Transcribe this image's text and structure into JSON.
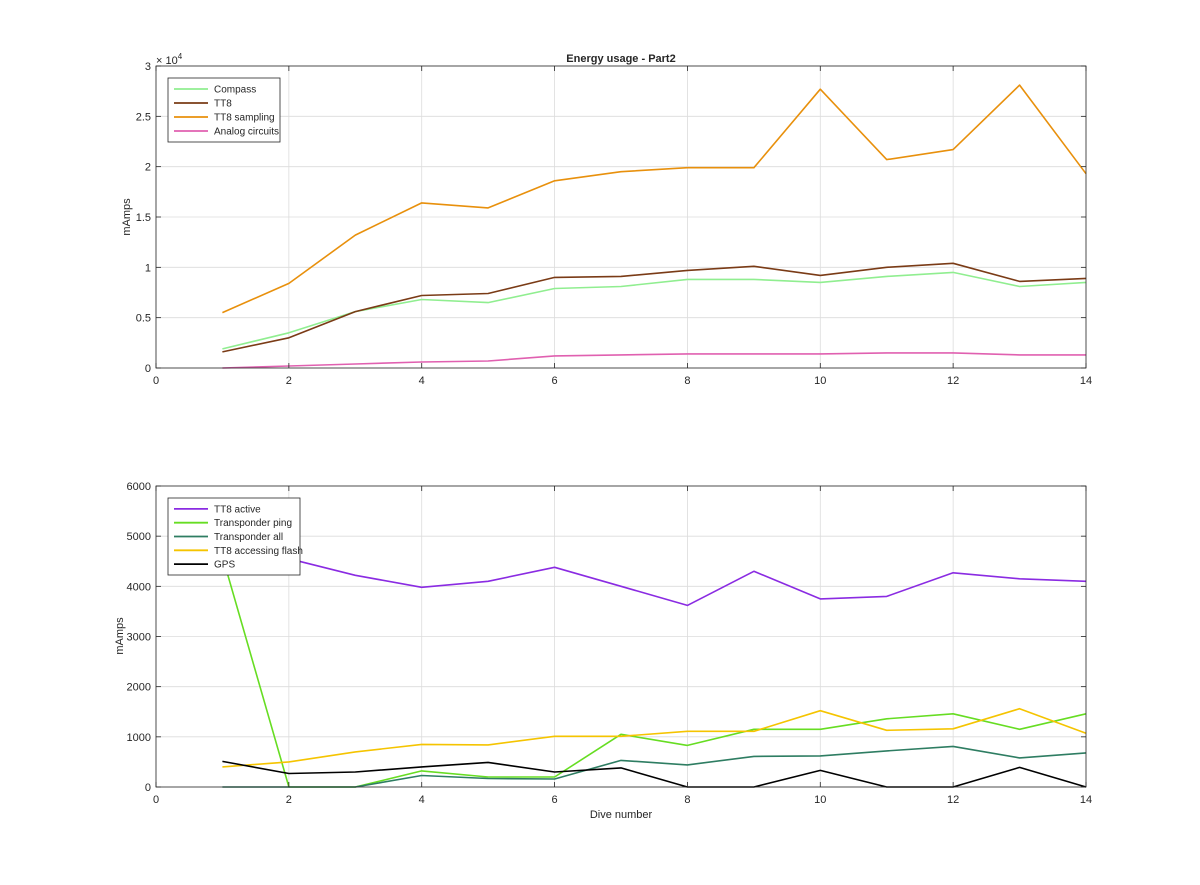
{
  "chart_data": [
    {
      "type": "line",
      "title": "Energy usage - Part2",
      "xlabel": "",
      "ylabel": "mAmps",
      "exponent_label": "× 10^4",
      "exponent_base": "× 10",
      "exponent_power": "4",
      "xlim": [
        0,
        14
      ],
      "ylim": [
        0,
        30000
      ],
      "x_ticks": [
        0,
        2,
        4,
        6,
        8,
        10,
        12,
        14
      ],
      "y_ticks": [
        0,
        5000,
        10000,
        15000,
        20000,
        25000,
        30000
      ],
      "y_tick_labels": [
        "0",
        "0.5",
        "1",
        "1.5",
        "2",
        "2.5",
        "3"
      ],
      "grid": true,
      "legend_position": "top-left",
      "x": [
        1,
        2,
        3,
        4,
        5,
        6,
        7,
        8,
        9,
        10,
        11,
        12,
        13,
        14
      ],
      "series": [
        {
          "name": "Compass",
          "color": "#90ee90",
          "values": [
            1900,
            3500,
            5600,
            6800,
            6500,
            7900,
            8100,
            8800,
            8800,
            8500,
            9100,
            9500,
            8100,
            8500
          ]
        },
        {
          "name": "TT8",
          "color": "#7a3b16",
          "values": [
            1600,
            3000,
            5600,
            7200,
            7400,
            9000,
            9100,
            9700,
            10100,
            9200,
            10000,
            10400,
            8600,
            8900
          ]
        },
        {
          "name": "TT8 sampling",
          "color": "#e8900c",
          "values": [
            5500,
            8400,
            13200,
            16400,
            15900,
            18600,
            19500,
            19900,
            19900,
            27700,
            20700,
            21700,
            28100,
            19300
          ]
        },
        {
          "name": "Analog circuits",
          "color": "#e060b0",
          "values": [
            0,
            200,
            400,
            600,
            700,
            1200,
            1300,
            1400,
            1400,
            1400,
            1500,
            1500,
            1300,
            1300
          ]
        }
      ]
    },
    {
      "type": "line",
      "title": "",
      "xlabel": "Dive number",
      "ylabel": "mAmps",
      "xlim": [
        0,
        14
      ],
      "ylim": [
        0,
        6000
      ],
      "x_ticks": [
        0,
        2,
        4,
        6,
        8,
        10,
        12,
        14
      ],
      "y_ticks": [
        0,
        1000,
        2000,
        3000,
        4000,
        5000,
        6000
      ],
      "y_tick_labels": [
        "0",
        "1000",
        "2000",
        "3000",
        "4000",
        "5000",
        "6000"
      ],
      "grid": true,
      "legend_position": "top-left",
      "x": [
        1,
        2,
        3,
        4,
        5,
        6,
        7,
        8,
        9,
        10,
        11,
        12,
        13,
        14
      ],
      "series": [
        {
          "name": "TT8 active",
          "color": "#8a2be2",
          "values": [
            4700,
            4550,
            4220,
            3980,
            4100,
            4380,
            4000,
            3620,
            4300,
            3750,
            3800,
            4270,
            4150,
            4100
          ]
        },
        {
          "name": "Transponder ping",
          "color": "#66dd22",
          "values": [
            4600,
            0,
            0,
            320,
            200,
            200,
            1050,
            830,
            1150,
            1150,
            1360,
            1460,
            1150,
            1460
          ]
        },
        {
          "name": "Transponder all",
          "color": "#2e7d62",
          "values": [
            0,
            0,
            0,
            230,
            170,
            160,
            530,
            440,
            610,
            620,
            720,
            810,
            580,
            680
          ]
        },
        {
          "name": "TT8 accessing flash",
          "color": "#f5c400",
          "values": [
            400,
            500,
            700,
            850,
            840,
            1010,
            1010,
            1110,
            1110,
            1520,
            1130,
            1160,
            1560,
            1070
          ]
        },
        {
          "name": "GPS",
          "color": "#000000",
          "values": [
            510,
            270,
            300,
            400,
            490,
            300,
            380,
            0,
            0,
            330,
            0,
            0,
            390,
            0
          ]
        }
      ]
    }
  ]
}
